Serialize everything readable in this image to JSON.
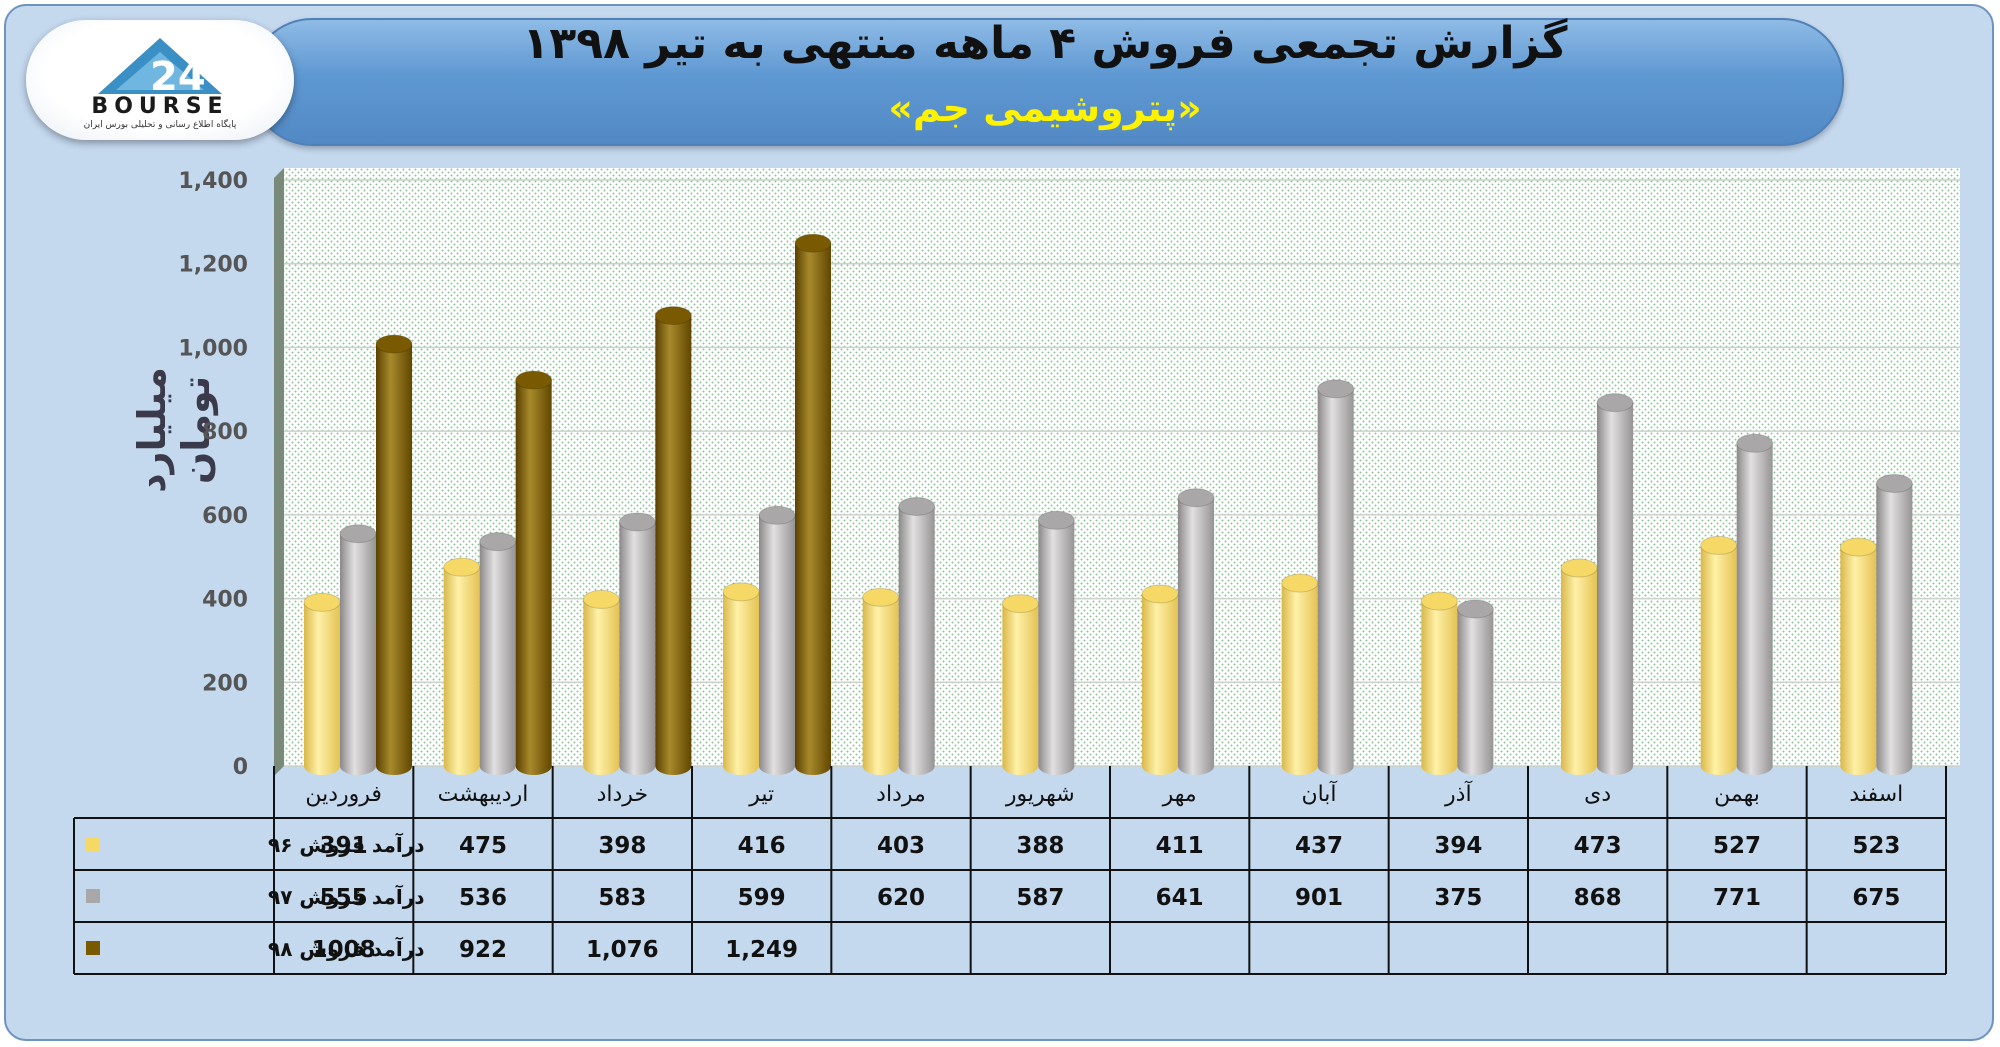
{
  "header": {
    "title": "گزارش تجمعی فروش ۴ ماهه منتهی به تیر ۱۳۹۸",
    "subtitle": "«پتروشیمی جم»"
  },
  "logo": {
    "text": "BOURSE",
    "subtitle": "پایگاه اطلاع رسانی و تحلیلی بورس ایران"
  },
  "chart_data": {
    "type": "bar",
    "ylabel": "میلیارد تومان",
    "ylim": [
      0,
      1400
    ],
    "yticks": [
      "0",
      "200",
      "400",
      "600",
      "800",
      "1,000",
      "1,200",
      "1,400"
    ],
    "grid": true,
    "categories": [
      "فروردین",
      "اردیبهشت",
      "خرداد",
      "تیر",
      "مرداد",
      "شهریور",
      "مهر",
      "آبان",
      "آذر",
      "دی",
      "بهمن",
      "اسفند"
    ],
    "series": [
      {
        "name": "درآمد فروش ۹۶",
        "color": "#f5d865",
        "values": [
          391,
          475,
          398,
          416,
          403,
          388,
          411,
          437,
          394,
          473,
          527,
          523
        ],
        "labels": [
          "391",
          "475",
          "398",
          "416",
          "403",
          "388",
          "411",
          "437",
          "394",
          "473",
          "527",
          "523"
        ]
      },
      {
        "name": "درآمد فروش ۹۷",
        "color": "#a9a7a8",
        "values": [
          555,
          536,
          583,
          599,
          620,
          587,
          641,
          901,
          375,
          868,
          771,
          675
        ],
        "labels": [
          "555",
          "536",
          "583",
          "599",
          "620",
          "587",
          "641",
          "901",
          "375",
          "868",
          "771",
          "675"
        ]
      },
      {
        "name": "درآمد فروش ۹۸",
        "color": "#7a5a00",
        "values": [
          1008,
          922,
          1076,
          1249,
          null,
          null,
          null,
          null,
          null,
          null,
          null,
          null
        ],
        "labels": [
          "1008",
          "922",
          "1,076",
          "1,249",
          "",
          "",
          "",
          "",
          "",
          "",
          "",
          ""
        ]
      }
    ]
  }
}
